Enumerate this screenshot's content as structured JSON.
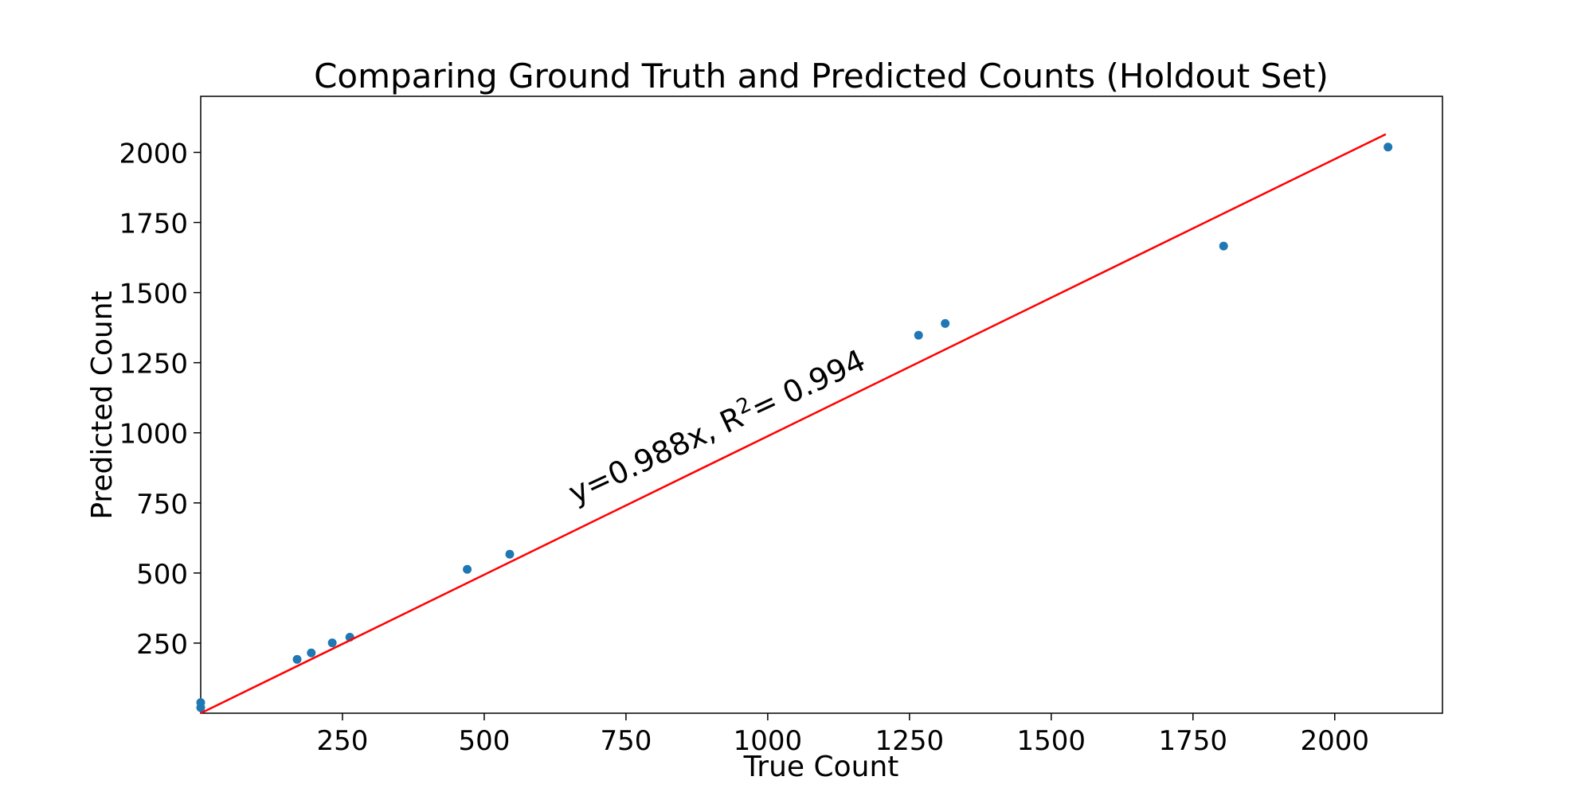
{
  "chart_data": {
    "type": "scatter",
    "title": "Comparing Ground Truth and Predicted Counts (Holdout Set)",
    "xlabel": "True Count",
    "ylabel": "Predicted Count",
    "xlim": [
      0,
      2190
    ],
    "ylim": [
      0,
      2200
    ],
    "xticks": [
      250,
      500,
      750,
      1000,
      1250,
      1500,
      1750,
      2000
    ],
    "yticks": [
      250,
      500,
      750,
      1000,
      1250,
      1500,
      1750,
      2000
    ],
    "grid": false,
    "colors": {
      "points": "#1f77b4",
      "fit_line": "#ff0000"
    },
    "points": {
      "x": [
        0,
        0,
        170,
        195,
        232,
        263,
        470,
        545,
        1266,
        1313,
        1804,
        2094
      ],
      "y": [
        20,
        38,
        192,
        215,
        251,
        271,
        513,
        567,
        1348,
        1390,
        1666,
        2019
      ]
    },
    "fit_line": {
      "slope": 0.988,
      "x_range": [
        0,
        2090
      ]
    },
    "annotation": {
      "equation": "y=0.988x, R",
      "superscript": "2",
      "r2": "= 0.994",
      "x": 660,
      "y": 745,
      "rotation_deg": -25
    }
  }
}
